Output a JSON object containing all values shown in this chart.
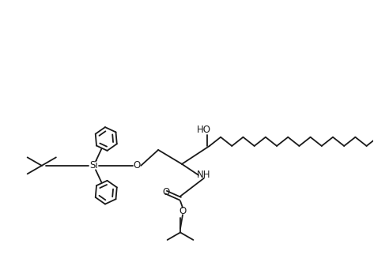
{
  "background_color": "#ffffff",
  "line_color": "#1a1a1a",
  "line_width": 1.3,
  "text_color": "#1a1a1a",
  "figsize": [
    4.73,
    3.37
  ],
  "dpi": 100,
  "xlim": [
    0,
    9.46
  ],
  "ylim": [
    0,
    6.74
  ]
}
